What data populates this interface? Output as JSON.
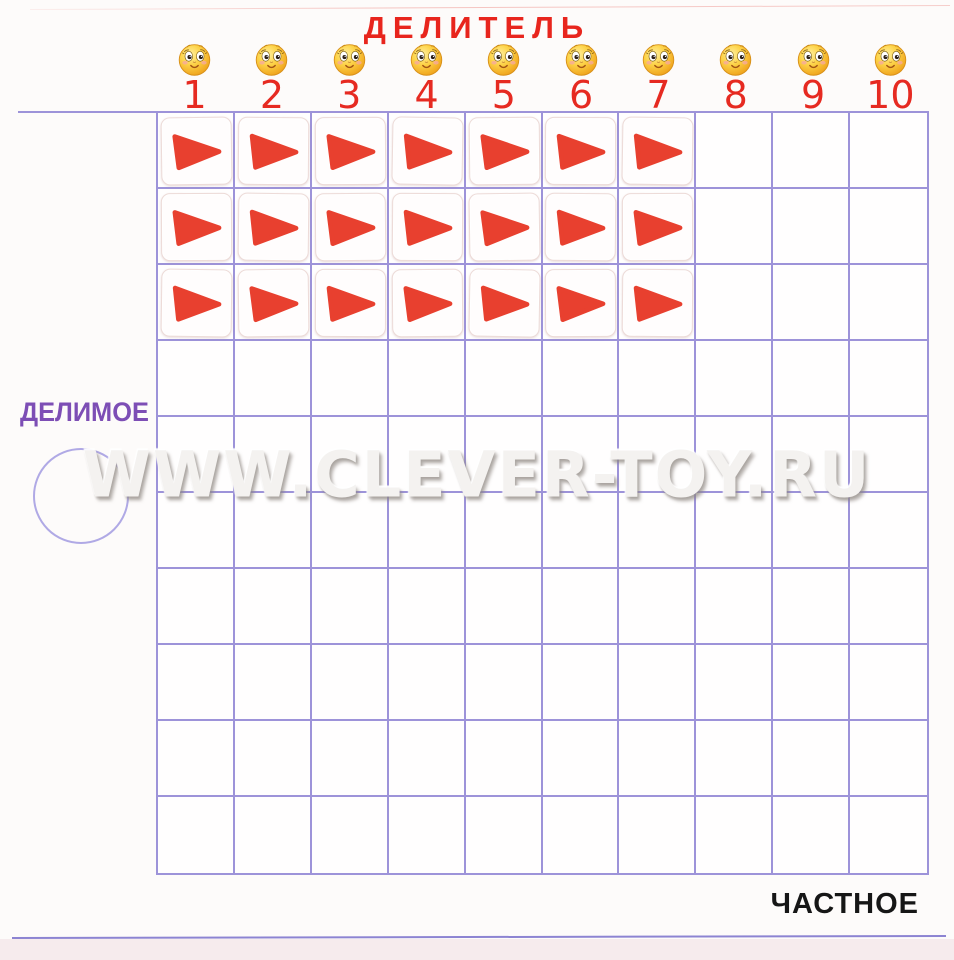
{
  "board": {
    "title": "ДЕЛИТЕЛЬ",
    "dividend_label": "ДЕЛИМОЕ",
    "quotient_label": "ЧАСТНОЕ",
    "watermark": "WWW.CLEVER-TOY.RU",
    "columns": [
      1,
      2,
      3,
      4,
      5,
      6,
      7,
      8,
      9,
      10
    ],
    "grid": {
      "rows": 10,
      "cols": 10
    },
    "tiles": {
      "piece": "red-triangle-card",
      "rows_filled": 3,
      "cols_filled": 7,
      "total": 21
    },
    "dividend_slot": {
      "shape": "circle"
    },
    "icons": {
      "column_marker": "smiley-face-icon",
      "tile_glyph": "red-triangle-icon"
    },
    "colors": {
      "title_red": "#e8251d",
      "number_red": "#e62a21",
      "tile_red": "#e8402f",
      "label_purple": "#7d4eb5",
      "grid_line": "#9d93d9",
      "quotient_black": "#161616"
    }
  }
}
